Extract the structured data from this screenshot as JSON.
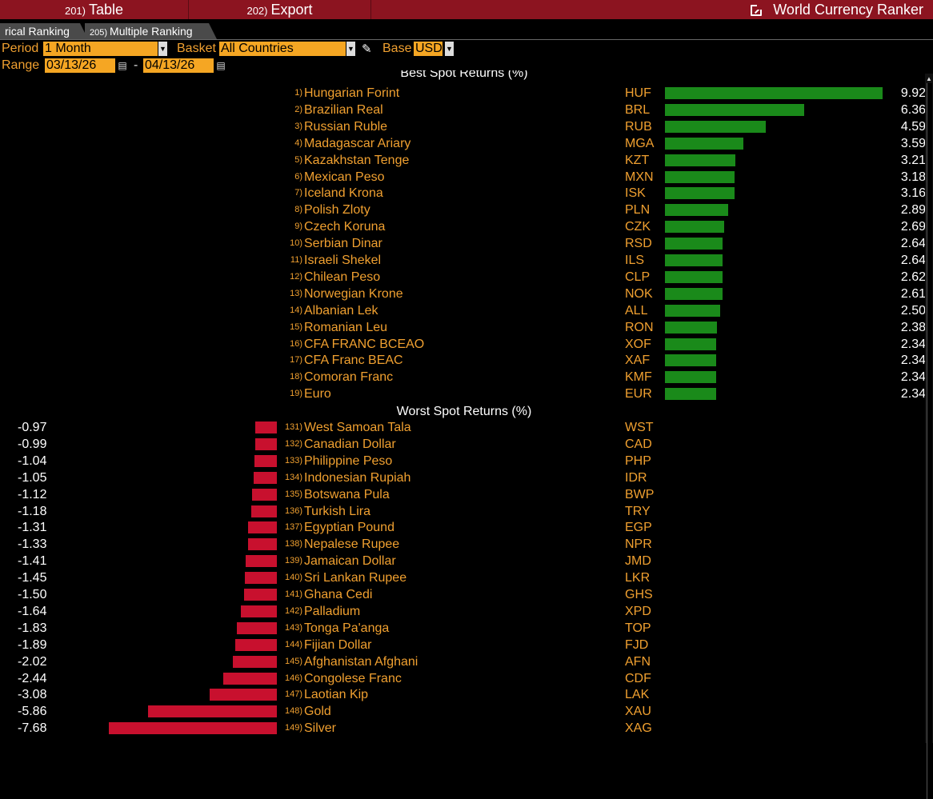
{
  "toolbar": {
    "btn1_num": "201)",
    "btn1_label": "Table",
    "btn2_num": "202)",
    "btn2_label": "Export",
    "title": "World Currency Ranker"
  },
  "tabs": [
    {
      "num": "",
      "label": "rical Ranking"
    },
    {
      "num": "205)",
      "label": "Multiple Ranking"
    }
  ],
  "controls": {
    "period_label": "Period",
    "period_value": "1 Month",
    "basket_label": "Basket",
    "basket_value": "All Countries",
    "base_label": "Base",
    "base_value": "USD",
    "range_label": "Range",
    "range_start": "03/13/26",
    "range_sep": "-",
    "range_end": "04/13/26"
  },
  "best": {
    "heading": "Best Spot Returns (%)",
    "rows": [
      {
        "rank": "1)",
        "name": "Hungarian Forint",
        "code": "HUF",
        "value": "9.92"
      },
      {
        "rank": "2)",
        "name": "Brazilian Real",
        "code": "BRL",
        "value": "6.36"
      },
      {
        "rank": "3)",
        "name": "Russian Ruble",
        "code": "RUB",
        "value": "4.59"
      },
      {
        "rank": "4)",
        "name": "Madagascar Ariary",
        "code": "MGA",
        "value": "3.59"
      },
      {
        "rank": "5)",
        "name": "Kazakhstan Tenge",
        "code": "KZT",
        "value": "3.21"
      },
      {
        "rank": "6)",
        "name": "Mexican Peso",
        "code": "MXN",
        "value": "3.18"
      },
      {
        "rank": "7)",
        "name": "Iceland Krona",
        "code": "ISK",
        "value": "3.16"
      },
      {
        "rank": "8)",
        "name": "Polish Zloty",
        "code": "PLN",
        "value": "2.89"
      },
      {
        "rank": "9)",
        "name": "Czech Koruna",
        "code": "CZK",
        "value": "2.69"
      },
      {
        "rank": "10)",
        "name": "Serbian Dinar",
        "code": "RSD",
        "value": "2.64"
      },
      {
        "rank": "11)",
        "name": "Israeli Shekel",
        "code": "ILS",
        "value": "2.64"
      },
      {
        "rank": "12)",
        "name": "Chilean Peso",
        "code": "CLP",
        "value": "2.62"
      },
      {
        "rank": "13)",
        "name": "Norwegian Krone",
        "code": "NOK",
        "value": "2.61"
      },
      {
        "rank": "14)",
        "name": "Albanian Lek",
        "code": "ALL",
        "value": "2.50"
      },
      {
        "rank": "15)",
        "name": "Romanian Leu",
        "code": "RON",
        "value": "2.38"
      },
      {
        "rank": "16)",
        "name": "CFA FRANC BCEAO",
        "code": "XOF",
        "value": "2.34"
      },
      {
        "rank": "17)",
        "name": "CFA Franc BEAC",
        "code": "XAF",
        "value": "2.34"
      },
      {
        "rank": "18)",
        "name": "Comoran Franc",
        "code": "KMF",
        "value": "2.34"
      },
      {
        "rank": "19)",
        "name": "Euro",
        "code": "EUR",
        "value": "2.34"
      }
    ]
  },
  "worst": {
    "heading": "Worst Spot Returns (%)",
    "rows": [
      {
        "rank": "131)",
        "name": "West Samoan Tala",
        "code": "WST",
        "value": "-0.97"
      },
      {
        "rank": "132)",
        "name": "Canadian Dollar",
        "code": "CAD",
        "value": "-0.99"
      },
      {
        "rank": "133)",
        "name": "Philippine Peso",
        "code": "PHP",
        "value": "-1.04"
      },
      {
        "rank": "134)",
        "name": "Indonesian Rupiah",
        "code": "IDR",
        "value": "-1.05"
      },
      {
        "rank": "135)",
        "name": "Botswana Pula",
        "code": "BWP",
        "value": "-1.12"
      },
      {
        "rank": "136)",
        "name": "Turkish Lira",
        "code": "TRY",
        "value": "-1.18"
      },
      {
        "rank": "137)",
        "name": "Egyptian Pound",
        "code": "EGP",
        "value": "-1.31"
      },
      {
        "rank": "138)",
        "name": "Nepalese Rupee",
        "code": "NPR",
        "value": "-1.33"
      },
      {
        "rank": "139)",
        "name": "Jamaican Dollar",
        "code": "JMD",
        "value": "-1.41"
      },
      {
        "rank": "140)",
        "name": "Sri Lankan Rupee",
        "code": "LKR",
        "value": "-1.45"
      },
      {
        "rank": "141)",
        "name": "Ghana Cedi",
        "code": "GHS",
        "value": "-1.50"
      },
      {
        "rank": "142)",
        "name": "Palladium",
        "code": "XPD",
        "value": "-1.64"
      },
      {
        "rank": "143)",
        "name": "Tonga Pa'anga",
        "code": "TOP",
        "value": "-1.83"
      },
      {
        "rank": "144)",
        "name": "Fijian Dollar",
        "code": "FJD",
        "value": "-1.89"
      },
      {
        "rank": "145)",
        "name": "Afghanistan Afghani",
        "code": "AFN",
        "value": "-2.02"
      },
      {
        "rank": "146)",
        "name": "Congolese Franc",
        "code": "CDF",
        "value": "-2.44"
      },
      {
        "rank": "147)",
        "name": "Laotian Kip",
        "code": "LAK",
        "value": "-3.08"
      },
      {
        "rank": "148)",
        "name": "Gold",
        "code": "XAU",
        "value": "-5.86"
      },
      {
        "rank": "149)",
        "name": "Silver",
        "code": "XAG",
        "value": "-7.68"
      }
    ]
  },
  "colors": {
    "positive_bar": "#1a8a1a",
    "negative_bar": "#c8102e",
    "header_bar": "#8c1420",
    "amber": "#f0a030"
  }
}
